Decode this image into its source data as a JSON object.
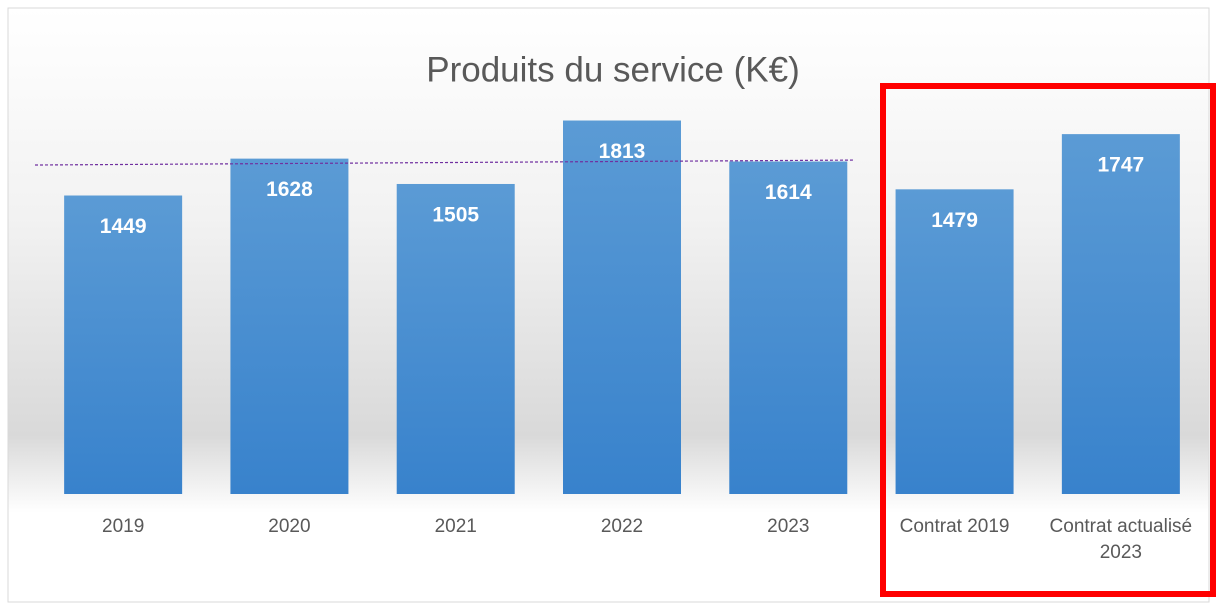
{
  "chart_data": {
    "type": "bar",
    "title": "Produits du service (K€)",
    "categories": [
      "2019",
      "2020",
      "2021",
      "2022",
      "2023",
      "Contrat 2019",
      "Contrat actualisé 2023"
    ],
    "values": [
      1449,
      1628,
      1505,
      1813,
      1614,
      1479,
      1747
    ],
    "color": "#4a90d6",
    "ylim": [
      0,
      2000
    ],
    "trendline": [
      1597,
      1621
    ],
    "trendline_color": "#7030a0"
  }
}
